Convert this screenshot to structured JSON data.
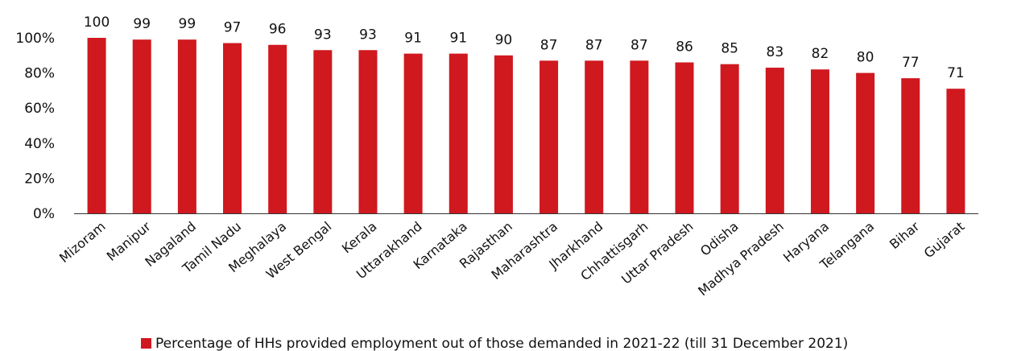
{
  "chart_data": {
    "type": "bar",
    "categories": [
      "Mizoram",
      "Manipur",
      "Nagaland",
      "Tamil Nadu",
      "Meghalaya",
      "West Bengal",
      "Kerala",
      "Uttarakhand",
      "Karnataka",
      "Rajasthan",
      "Maharashtra",
      "Jharkhand",
      "Chhattisgarh",
      "Uttar Pradesh",
      "Odisha",
      "Madhya Pradesh",
      "Haryana",
      "Telangana",
      "Bihar",
      "Gujarat"
    ],
    "series": [
      {
        "name": "Percentage of HHs provided employment out of those demanded in 2021-22 (till 31 December 2021)",
        "values": [
          100,
          99,
          99,
          97,
          96,
          93,
          93,
          91,
          91,
          90,
          87,
          87,
          87,
          86,
          85,
          83,
          82,
          80,
          77,
          71
        ],
        "labels": [
          "100",
          "99",
          "99",
          "97",
          "96",
          "93",
          "93",
          "91",
          "91",
          "90",
          "87",
          "87",
          "87",
          "86",
          "85",
          "83",
          "82",
          "80",
          "77",
          "71"
        ],
        "color": "#d0181f"
      }
    ],
    "yticks": [
      "0%",
      "20%",
      "40%",
      "60%",
      "80%",
      "100%"
    ],
    "ylim": [
      0,
      100
    ],
    "grid": false,
    "legend": "bottom",
    "title": "",
    "xlabel": "",
    "ylabel": ""
  }
}
